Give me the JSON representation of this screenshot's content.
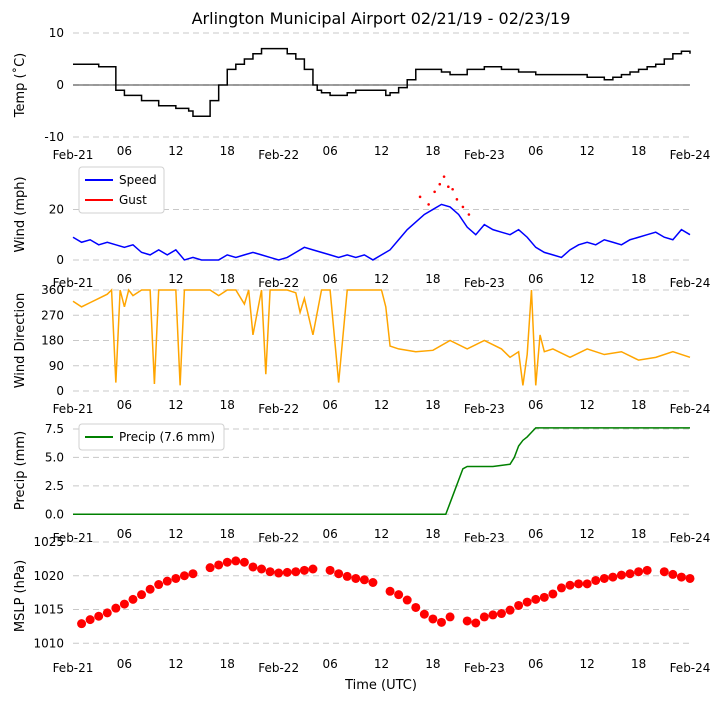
{
  "chart_data": {
    "type": "line",
    "title": "Arlington Municipal Airport 02/21/19 - 02/23/19",
    "xlabel": "Time (UTC)",
    "x_range_hours": [
      0,
      72
    ],
    "x_ticks": [
      {
        "h": 0,
        "label": "Feb-21"
      },
      {
        "h": 6,
        "label": "06"
      },
      {
        "h": 12,
        "label": "12"
      },
      {
        "h": 18,
        "label": "18"
      },
      {
        "h": 24,
        "label": "Feb-22"
      },
      {
        "h": 30,
        "label": "06"
      },
      {
        "h": 36,
        "label": "12"
      },
      {
        "h": 42,
        "label": "18"
      },
      {
        "h": 48,
        "label": "Feb-23"
      },
      {
        "h": 54,
        "label": "06"
      },
      {
        "h": 60,
        "label": "12"
      },
      {
        "h": 66,
        "label": "18"
      },
      {
        "h": 72,
        "label": "Feb-24"
      }
    ],
    "panels": [
      {
        "id": "temp",
        "ylabel": "Temp (˚C)",
        "ylim": [
          -10,
          10
        ],
        "yticks": [
          "-10",
          "0",
          "10"
        ],
        "ytick_values": [
          -10,
          0,
          10
        ],
        "zero_line": true,
        "series": [
          {
            "name": "Temp",
            "color": "#000000",
            "style": "step",
            "x": [
              0,
              3,
              5,
              6,
              8,
              10,
              12,
              13.5,
              14,
              15,
              16,
              17,
              18,
              19,
              20,
              21,
              22,
              23,
              24,
              25,
              26,
              27,
              28,
              28.5,
              29,
              30,
              31,
              32,
              33,
              34,
              35,
              36,
              36.5,
              37,
              38,
              39,
              40,
              42,
              43,
              44,
              46,
              48,
              50,
              52,
              54,
              56,
              58,
              60,
              61,
              62,
              63,
              64,
              65,
              66,
              67,
              68,
              69,
              70,
              70.5,
              71,
              72
            ],
            "y": [
              4,
              3.5,
              -1,
              -2,
              -3,
              -4,
              -4.5,
              -5,
              -6,
              -6,
              -3,
              0,
              3,
              4,
              5,
              6,
              7,
              7,
              7,
              6,
              5,
              3,
              0,
              -1,
              -1.5,
              -2,
              -2,
              -1.5,
              -1,
              -1,
              -1,
              -1,
              -2,
              -1.5,
              -0.5,
              1,
              3,
              3,
              2.5,
              2,
              3,
              3.5,
              3,
              2.5,
              2,
              2,
              2,
              1.5,
              1.5,
              1,
              1.5,
              2,
              2.5,
              3,
              3.5,
              4,
              5,
              6,
              6,
              6.5,
              6
            ]
          }
        ]
      },
      {
        "id": "wind",
        "ylabel": "Wind (mph)",
        "ylim": [
          -2,
          38
        ],
        "yticks": [
          "0",
          "20"
        ],
        "ytick_values": [
          0,
          20
        ],
        "legend": [
          "Speed",
          "Gust"
        ],
        "series": [
          {
            "name": "Speed",
            "color": "#0000ff",
            "x": [
              0,
              1,
              2,
              3,
              4,
              5,
              6,
              7,
              8,
              9,
              10,
              11,
              12,
              13,
              14,
              15,
              16,
              17,
              18,
              19,
              20,
              21,
              22,
              23,
              24,
              25,
              26,
              27,
              28,
              29,
              30,
              31,
              32,
              33,
              34,
              35,
              36,
              37,
              38,
              39,
              40,
              41,
              42,
              43,
              44,
              45,
              46,
              47,
              48,
              49,
              50,
              51,
              52,
              53,
              54,
              55,
              56,
              57,
              58,
              59,
              60,
              61,
              62,
              63,
              64,
              65,
              66,
              67,
              68,
              69,
              70,
              71,
              72
            ],
            "y": [
              9,
              7,
              8,
              6,
              7,
              6,
              5,
              6,
              3,
              2,
              4,
              2,
              4,
              0,
              1,
              0,
              0,
              0,
              2,
              1,
              2,
              3,
              2,
              1,
              0,
              1,
              3,
              5,
              4,
              3,
              2,
              1,
              2,
              1,
              2,
              0,
              2,
              4,
              8,
              12,
              15,
              18,
              20,
              22,
              21,
              18,
              13,
              10,
              14,
              12,
              11,
              10,
              12,
              9,
              5,
              3,
              2,
              1,
              4,
              6,
              7,
              6,
              8,
              7,
              6,
              8,
              9,
              10,
              11,
              9,
              8,
              12,
              10
            ]
          },
          {
            "name": "Gust",
            "color": "#ff0000",
            "x": [
              40.5,
              41.5,
              42.2,
              42.8,
              43.3,
              43.8,
              44.3,
              44.8,
              45.5,
              46.2
            ],
            "y": [
              25,
              22,
              27,
              30,
              33,
              29,
              28,
              24,
              21,
              18
            ]
          }
        ]
      },
      {
        "id": "dir",
        "ylabel": "Wind Direction",
        "ylim": [
          0,
          360
        ],
        "yticks": [
          "0",
          "90",
          "180",
          "270",
          "360"
        ],
        "ytick_values": [
          0,
          90,
          180,
          270,
          360
        ],
        "series": [
          {
            "name": "Direction",
            "color": "#ffa500",
            "x": [
              0,
              1,
              2,
              3,
              4,
              4.5,
              5,
              5.5,
              6,
              6.5,
              7,
              8,
              9,
              9.5,
              10,
              11,
              12,
              12.5,
              13,
              14,
              15,
              16,
              17,
              18,
              19,
              20,
              20.5,
              21,
              22,
              22.5,
              23,
              24,
              25,
              26,
              26.5,
              27,
              28,
              29,
              30,
              31,
              32,
              33,
              34,
              35,
              36,
              36.5,
              37,
              38,
              40,
              42,
              44,
              46,
              48,
              50,
              51,
              52,
              52.5,
              53,
              53.5,
              54,
              54.5,
              55,
              56,
              58,
              60,
              62,
              64,
              66,
              68,
              70,
              72
            ],
            "y": [
              320,
              300,
              315,
              330,
              345,
              360,
              30,
              360,
              300,
              360,
              340,
              360,
              360,
              25,
              360,
              360,
              360,
              20,
              360,
              360,
              360,
              360,
              340,
              360,
              360,
              310,
              360,
              200,
              360,
              60,
              360,
              360,
              360,
              350,
              280,
              330,
              200,
              360,
              360,
              30,
              360,
              360,
              360,
              360,
              360,
              300,
              160,
              150,
              140,
              145,
              180,
              150,
              180,
              150,
              120,
              140,
              20,
              130,
              360,
              20,
              200,
              140,
              150,
              120,
              150,
              130,
              140,
              110,
              120,
              140,
              120
            ]
          }
        ]
      },
      {
        "id": "precip",
        "ylabel": "Precip (mm)",
        "ylim": [
          -0.5,
          8.2
        ],
        "yticks": [
          "0.0",
          "2.5",
          "5.0",
          "7.5"
        ],
        "ytick_values": [
          0,
          2.5,
          5.0,
          7.5
        ],
        "legend": [
          "Precip (7.6 mm)"
        ],
        "series": [
          {
            "name": "Precip (7.6 mm)",
            "color": "#008000",
            "x": [
              0,
              43.5,
              44,
              44.5,
              45,
              45.5,
              46,
              47,
              48,
              49,
              50,
              51,
              51.5,
              52,
              52.5,
              53,
              53.5,
              54,
              55,
              60,
              72
            ],
            "y": [
              0,
              0,
              1,
              2,
              3,
              4,
              4.2,
              4.2,
              4.2,
              4.2,
              4.3,
              4.4,
              5,
              6,
              6.5,
              6.8,
              7.2,
              7.6,
              7.6,
              7.6,
              7.6
            ]
          }
        ]
      },
      {
        "id": "mslp",
        "ylabel": "MSLP (hPa)",
        "ylim": [
          1009,
          1025
        ],
        "yticks": [
          "1010",
          "1015",
          "1020",
          "1025"
        ],
        "ytick_values": [
          1010,
          1015,
          1020,
          1025
        ],
        "series": [
          {
            "name": "MSLP",
            "color": "#ff0000",
            "style": "dots",
            "x": [
              1,
              2,
              3,
              4,
              5,
              6,
              7,
              8,
              9,
              10,
              11,
              12,
              13,
              14,
              16,
              17,
              18,
              19,
              20,
              21,
              22,
              23,
              24,
              25,
              26,
              27,
              28,
              30,
              31,
              32,
              33,
              34,
              35,
              37,
              38,
              39,
              40,
              41,
              42,
              43,
              44,
              46,
              47,
              48,
              49,
              50,
              51,
              52,
              53,
              54,
              55,
              56,
              57,
              58,
              59,
              60,
              61,
              62,
              63,
              64,
              65,
              66,
              67,
              69,
              70,
              71,
              72
            ],
            "y": [
              1012.9,
              1013.5,
              1014,
              1014.5,
              1015.2,
              1015.8,
              1016.5,
              1017.2,
              1018,
              1018.7,
              1019.2,
              1019.6,
              1020,
              1020.3,
              1021.2,
              1021.6,
              1022,
              1022.2,
              1022,
              1021.3,
              1021,
              1020.6,
              1020.4,
              1020.5,
              1020.6,
              1020.8,
              1021,
              1020.8,
              1020.3,
              1019.9,
              1019.6,
              1019.4,
              1019,
              1017.7,
              1017.2,
              1016.4,
              1015.3,
              1014.3,
              1013.6,
              1013.1,
              1013.9,
              1013.3,
              1013,
              1013.9,
              1014.2,
              1014.4,
              1014.9,
              1015.6,
              1016.1,
              1016.5,
              1016.8,
              1017.3,
              1018.2,
              1018.6,
              1018.8,
              1018.8,
              1019.3,
              1019.6,
              1019.8,
              1020.1,
              1020.3,
              1020.6,
              1020.8,
              1020.6,
              1020.2,
              1019.8,
              1019.6
            ]
          }
        ]
      }
    ]
  }
}
